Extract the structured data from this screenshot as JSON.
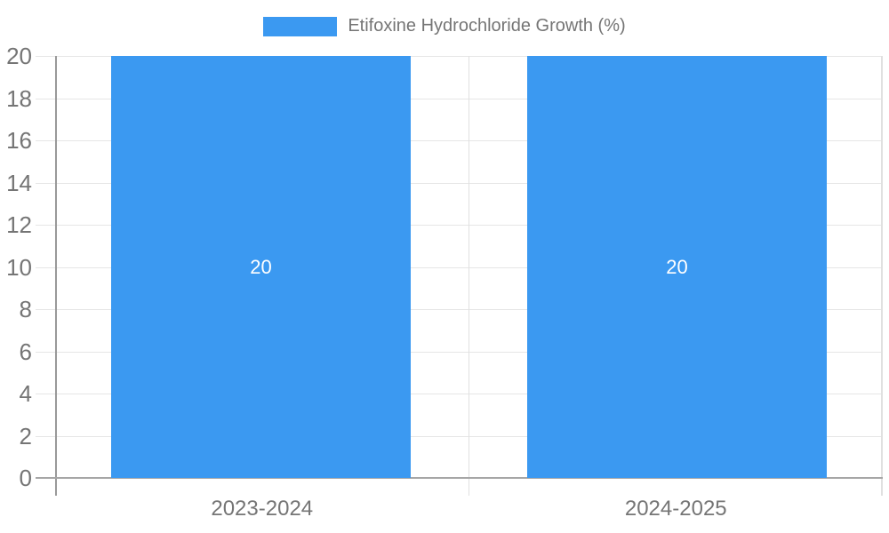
{
  "chart_data": {
    "type": "bar",
    "title": "",
    "legend": "Etifoxine Hydrochloride Growth (%)",
    "legend_position": "top-center",
    "categories": [
      "2023-2024",
      "2024-2025"
    ],
    "values": [
      20,
      20
    ],
    "xlabel": "",
    "ylabel": "",
    "ylim": [
      0,
      20
    ],
    "yticks": [
      0,
      2,
      4,
      6,
      8,
      10,
      12,
      14,
      16,
      18,
      20
    ],
    "grid": true
  },
  "colors": {
    "bar-blue": "#3B99F1",
    "label-gray": "#757575",
    "grid-gray": "#E6E6E6",
    "axis-dark": "#A6A6A6",
    "yaxis-dark": "#999999",
    "bar-label-white": "#FFFFFF"
  }
}
